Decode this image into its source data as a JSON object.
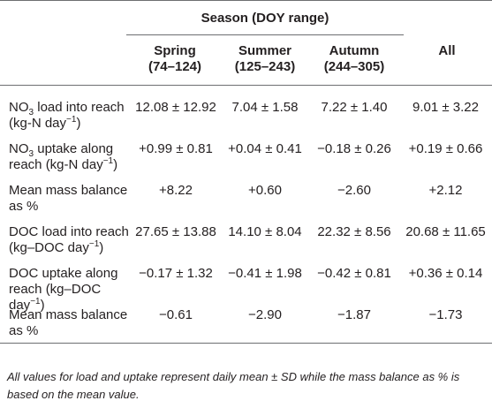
{
  "header": {
    "season_title": "Season (DOY range)",
    "columns": [
      {
        "line1": "Spring",
        "line2": "(74–124)"
      },
      {
        "line1": "Summer",
        "line2": "(125–243)"
      },
      {
        "line1": "Autumn",
        "line2": "(244–305)"
      },
      {
        "line1": "All",
        "line2": ""
      }
    ]
  },
  "rows": [
    {
      "label_line1_pre": "NO",
      "label_line1_sub": "3",
      "label_line1_post": " load into reach",
      "label_line2_pre": "(kg-N day",
      "label_line2_sup": "−1",
      "label_line2_post": ")",
      "label_line3": "",
      "values": [
        "12.08 ± 12.92",
        "7.04 ± 1.58",
        "7.22 ± 1.40",
        "9.01 ± 3.22"
      ]
    },
    {
      "label_line1_pre": "NO",
      "label_line1_sub": "3",
      "label_line1_post": " uptake along",
      "label_line2_pre": "reach (kg-N day",
      "label_line2_sup": "−1",
      "label_line2_post": ")",
      "label_line3": "",
      "values": [
        "+0.99 ± 0.81",
        "+0.04 ± 0.41",
        "−0.18 ± 0.26",
        "+0.19 ± 0.66"
      ]
    },
    {
      "label_line1_pre": "Mean mass balance",
      "label_line1_sub": "",
      "label_line1_post": "",
      "label_line2_pre": "as %",
      "label_line2_sup": "",
      "label_line2_post": "",
      "label_line3": "",
      "values": [
        "+8.22",
        "+0.60",
        "−2.60",
        "+2.12"
      ]
    },
    {
      "label_line1_pre": "DOC load into reach",
      "label_line1_sub": "",
      "label_line1_post": "",
      "label_line2_pre": "(kg–DOC day",
      "label_line2_sup": "−1",
      "label_line2_post": ")",
      "label_line3": "",
      "values": [
        "27.65 ± 13.88",
        "14.10 ± 8.04",
        "22.32 ± 8.56",
        "20.68 ± 11.65"
      ]
    },
    {
      "label_line1_pre": "DOC uptake along",
      "label_line1_sub": "",
      "label_line1_post": "",
      "label_line2_pre": "reach (kg–DOC",
      "label_line2_sup": "",
      "label_line2_post": "",
      "label_line3": "day",
      "label_line3_sup": "−1",
      "label_line3_post": ")",
      "values": [
        "−0.17 ± 1.32",
        "−0.41 ± 1.98",
        "−0.42 ± 0.81",
        "+0.36 ± 0.14"
      ]
    },
    {
      "label_line1_pre": "Mean mass balance",
      "label_line1_sub": "",
      "label_line1_post": "",
      "label_line2_pre": "as %",
      "label_line2_sup": "",
      "label_line2_post": "",
      "label_line3": "",
      "values": [
        "−0.61",
        "−2.90",
        "−1.87",
        "−1.73"
      ]
    }
  ],
  "footnote": "All values for load and uptake represent daily mean ± SD while the mass balance as % is based on the mean value."
}
